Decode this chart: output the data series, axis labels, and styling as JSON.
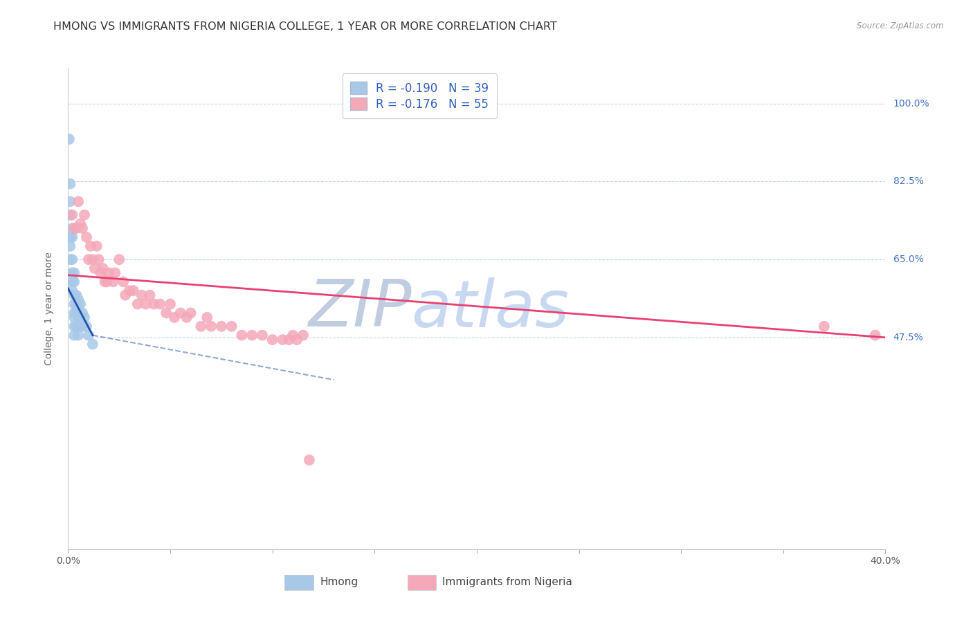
{
  "title": "HMONG VS IMMIGRANTS FROM NIGERIA COLLEGE, 1 YEAR OR MORE CORRELATION CHART",
  "source": "Source: ZipAtlas.com",
  "ylabel": "College, 1 year or more",
  "watermark_zip": "ZIP",
  "watermark_atlas": "atlas",
  "ytick_labels": [
    "100.0%",
    "82.5%",
    "65.0%",
    "47.5%"
  ],
  "ytick_positions": [
    1.0,
    0.825,
    0.65,
    0.475
  ],
  "xlim": [
    0.0,
    0.4
  ],
  "ylim": [
    0.0,
    1.08
  ],
  "hmong_x": [
    0.0005,
    0.001,
    0.001,
    0.001,
    0.001,
    0.001,
    0.001,
    0.002,
    0.002,
    0.002,
    0.002,
    0.002,
    0.002,
    0.003,
    0.003,
    0.003,
    0.003,
    0.003,
    0.003,
    0.003,
    0.003,
    0.004,
    0.004,
    0.004,
    0.004,
    0.005,
    0.005,
    0.005,
    0.005,
    0.005,
    0.006,
    0.006,
    0.006,
    0.007,
    0.007,
    0.008,
    0.009,
    0.01,
    0.012
  ],
  "hmong_y": [
    0.92,
    0.82,
    0.78,
    0.75,
    0.7,
    0.68,
    0.65,
    0.72,
    0.7,
    0.65,
    0.62,
    0.6,
    0.58,
    0.62,
    0.6,
    0.57,
    0.55,
    0.53,
    0.52,
    0.5,
    0.48,
    0.57,
    0.55,
    0.53,
    0.5,
    0.56,
    0.54,
    0.52,
    0.5,
    0.48,
    0.55,
    0.52,
    0.5,
    0.53,
    0.5,
    0.52,
    0.5,
    0.48,
    0.46
  ],
  "nigeria_x": [
    0.002,
    0.003,
    0.004,
    0.005,
    0.006,
    0.007,
    0.008,
    0.009,
    0.01,
    0.011,
    0.012,
    0.013,
    0.014,
    0.015,
    0.016,
    0.017,
    0.018,
    0.019,
    0.02,
    0.022,
    0.023,
    0.025,
    0.027,
    0.028,
    0.03,
    0.032,
    0.034,
    0.036,
    0.038,
    0.04,
    0.042,
    0.045,
    0.048,
    0.05,
    0.052,
    0.055,
    0.058,
    0.06,
    0.065,
    0.068,
    0.07,
    0.075,
    0.08,
    0.085,
    0.09,
    0.095,
    0.1,
    0.105,
    0.108,
    0.11,
    0.112,
    0.115,
    0.118,
    0.37,
    0.395
  ],
  "nigeria_y": [
    0.75,
    0.72,
    0.72,
    0.78,
    0.73,
    0.72,
    0.75,
    0.7,
    0.65,
    0.68,
    0.65,
    0.63,
    0.68,
    0.65,
    0.62,
    0.63,
    0.6,
    0.6,
    0.62,
    0.6,
    0.62,
    0.65,
    0.6,
    0.57,
    0.58,
    0.58,
    0.55,
    0.57,
    0.55,
    0.57,
    0.55,
    0.55,
    0.53,
    0.55,
    0.52,
    0.53,
    0.52,
    0.53,
    0.5,
    0.52,
    0.5,
    0.5,
    0.5,
    0.48,
    0.48,
    0.48,
    0.47,
    0.47,
    0.47,
    0.48,
    0.47,
    0.48,
    0.2,
    0.5,
    0.48
  ],
  "hmong_color": "#a8c8e8",
  "nigeria_color": "#f4a8b8",
  "hmong_line_color": "#2050b0",
  "nigeria_line_color": "#e84070",
  "background_color": "#ffffff",
  "grid_color": "#c8d4e8",
  "title_fontsize": 11.5,
  "axis_label_fontsize": 10,
  "tick_fontsize": 10,
  "watermark_color_zip": "#c0cce0",
  "watermark_color_atlas": "#c8d8f0",
  "watermark_fontsize": 68
}
